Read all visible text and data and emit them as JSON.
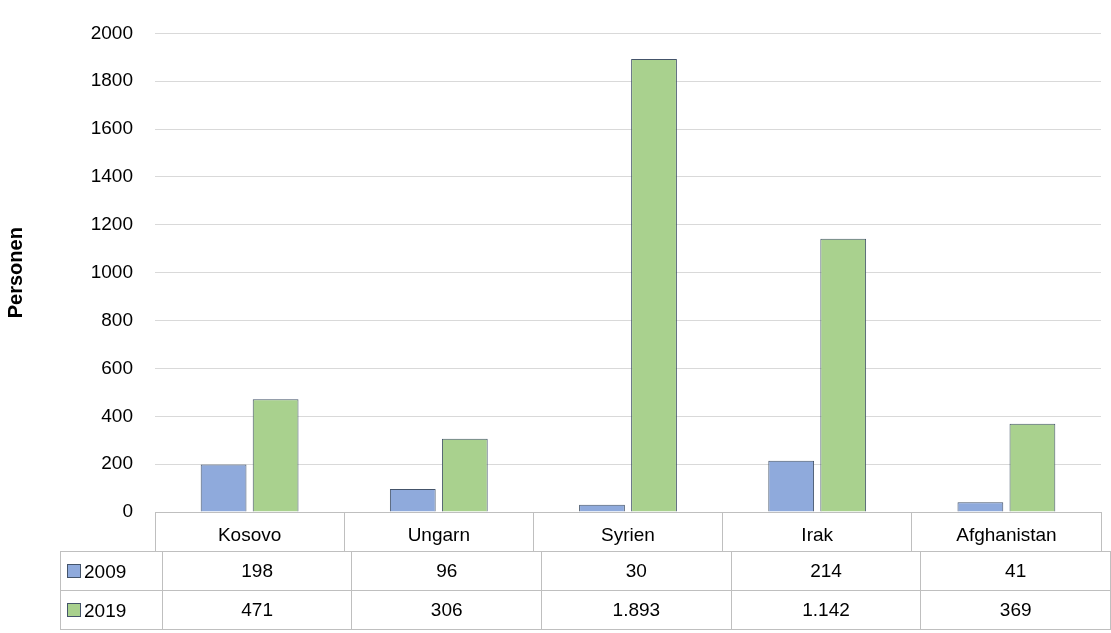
{
  "chart_data": {
    "type": "bar",
    "ylabel": "Personen",
    "categories": [
      "Kosovo",
      "Ungarn",
      "Syrien",
      "Irak",
      "Afghanistan"
    ],
    "series": [
      {
        "name": "2009",
        "color": "#8faadc",
        "values": [
          198,
          96,
          30,
          214,
          41
        ],
        "value_labels": [
          "198",
          "96",
          "30",
          "214",
          "41"
        ]
      },
      {
        "name": "2019",
        "color": "#a9d18e",
        "values": [
          471,
          306,
          1893,
          1142,
          369
        ],
        "value_labels": [
          "471",
          "306",
          "1.893",
          "1.142",
          "369"
        ]
      }
    ],
    "ylim": [
      0,
      2000
    ],
    "yticks": [
      0,
      200,
      400,
      600,
      800,
      1000,
      1200,
      1400,
      1600,
      1800,
      2000
    ],
    "grid": "y",
    "legend": "bottom"
  }
}
